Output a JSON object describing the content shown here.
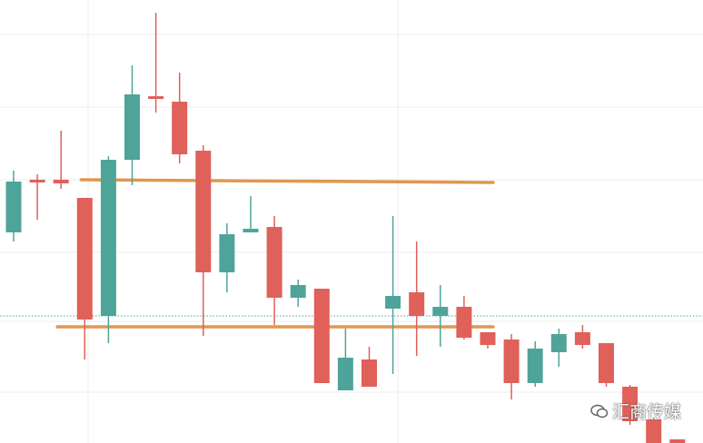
{
  "chart_data": {
    "type": "candlestick",
    "title": "",
    "xlabel": "",
    "ylabel": "",
    "ylim": [
      0,
      488
    ],
    "grid": true,
    "colors": {
      "up": "#4fa49a",
      "down": "#e0605a",
      "support_resistance": "#e0984e",
      "reference_dotted": "#4fa49a",
      "grid": "#ececec"
    },
    "candles": [
      {
        "open": 232,
        "close": 288,
        "high": 300,
        "low": 222
      },
      {
        "open": 290,
        "close": 290,
        "high": 296,
        "low": 246
      },
      {
        "open": 290,
        "close": 286,
        "high": 344,
        "low": 280
      },
      {
        "open": 270,
        "close": 136,
        "high": 270,
        "low": 92
      },
      {
        "open": 140,
        "close": 312,
        "high": 316,
        "low": 110
      },
      {
        "open": 312,
        "close": 384,
        "high": 416,
        "low": 284
      },
      {
        "open": 382,
        "close": 380,
        "high": 474,
        "low": 364
      },
      {
        "open": 376,
        "close": 318,
        "high": 408,
        "low": 308
      },
      {
        "open": 322,
        "close": 188,
        "high": 328,
        "low": 118
      },
      {
        "open": 188,
        "close": 230,
        "high": 242,
        "low": 166
      },
      {
        "open": 232,
        "close": 236,
        "high": 272,
        "low": 232
      },
      {
        "open": 238,
        "close": 160,
        "high": 250,
        "low": 130
      },
      {
        "open": 160,
        "close": 174,
        "high": 180,
        "low": 150
      },
      {
        "open": 170,
        "close": 66,
        "high": 170,
        "low": 66
      },
      {
        "open": 58,
        "close": 94,
        "high": 126,
        "low": 58
      },
      {
        "open": 92,
        "close": 62,
        "high": 106,
        "low": 62
      },
      {
        "open": 148,
        "close": 162,
        "high": 250,
        "low": 76
      },
      {
        "open": 166,
        "close": 140,
        "high": 222,
        "low": 96
      },
      {
        "open": 140,
        "close": 150,
        "high": 174,
        "low": 106
      },
      {
        "open": 150,
        "close": 116,
        "high": 162,
        "low": 114
      },
      {
        "open": 122,
        "close": 108,
        "high": 122,
        "low": 104
      },
      {
        "open": 114,
        "close": 66,
        "high": 120,
        "low": 48
      },
      {
        "open": 66,
        "close": 104,
        "high": 112,
        "low": 62
      },
      {
        "open": 100,
        "close": 120,
        "high": 126,
        "low": 84
      },
      {
        "open": 122,
        "close": 108,
        "high": 130,
        "low": 104
      },
      {
        "open": 110,
        "close": 66,
        "high": 110,
        "low": 62
      },
      {
        "open": 62,
        "close": 24,
        "high": 64,
        "low": 20
      },
      {
        "open": 26,
        "close": 0,
        "high": 28,
        "low": 0
      },
      {
        "open": 4,
        "close": 0,
        "high": 4,
        "low": 0
      }
    ],
    "horizontal_lines": [
      {
        "y_start": 290,
        "y_end": 287,
        "x_start_index": 3,
        "x_end_index": 20,
        "style": "solid"
      },
      {
        "y_start": 128,
        "y_end": 128,
        "x_start_index": 2,
        "x_end_index": 20,
        "style": "solid"
      },
      {
        "y_start": 140,
        "y_end": 140,
        "x_start_index": 0,
        "x_end_index": 28,
        "style": "dotted"
      }
    ]
  },
  "watermark": {
    "text": "汇商传媒",
    "icon": "wechat-icon"
  }
}
